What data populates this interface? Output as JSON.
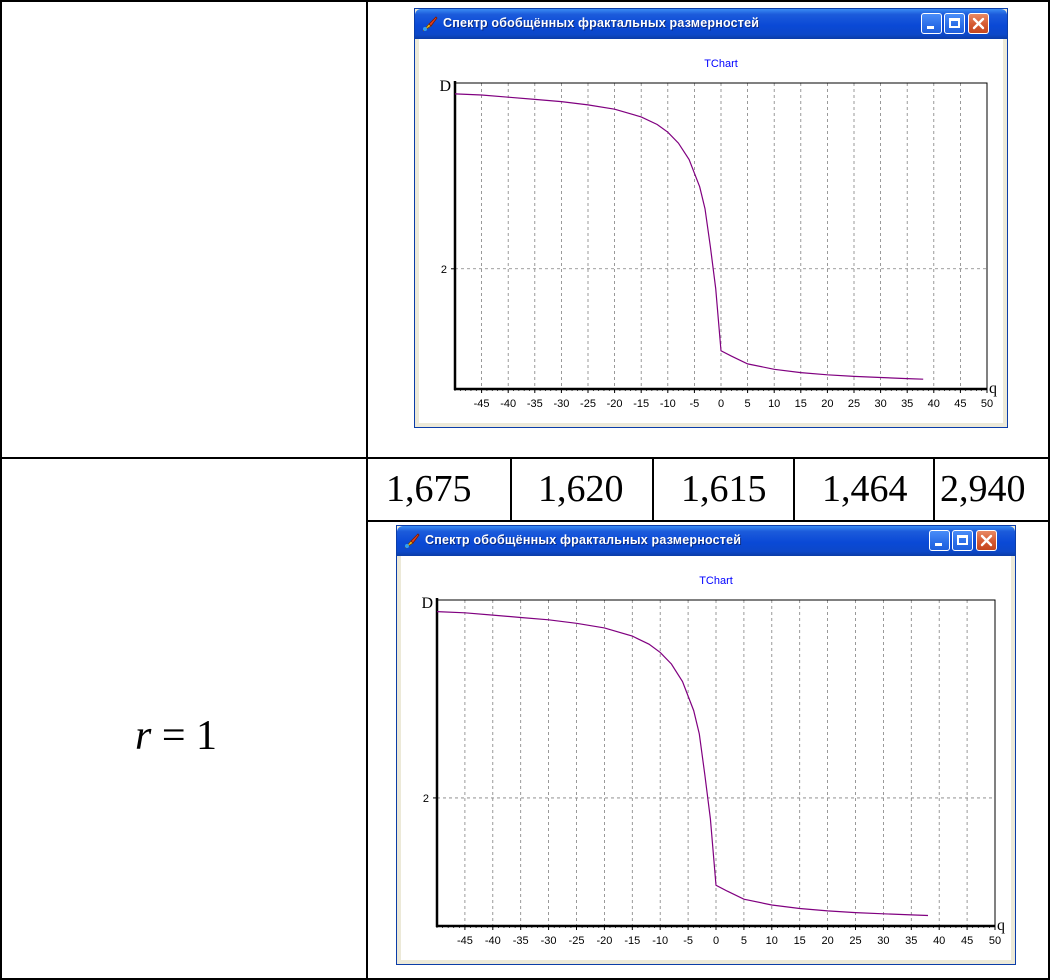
{
  "table": {
    "r_label": {
      "var": "r",
      "rest": " = 1"
    },
    "values": [
      "1,675",
      "1,620",
      "1,615",
      "1,464",
      "2,940"
    ]
  },
  "windows": [
    {
      "title": "Спектр обобщённых фрактальных размерностей"
    },
    {
      "title": "Спектр обобщённых фрактальных размерностей"
    }
  ],
  "chart_data": [
    {
      "type": "line",
      "title": "TChart",
      "xlabel": "q",
      "ylabel": "D",
      "xlim": [
        -50,
        50
      ],
      "ylim": [
        0.9,
        3.7
      ],
      "x_ticks": [
        -45,
        -40,
        -35,
        -30,
        -25,
        -20,
        -15,
        -10,
        -5,
        0,
        5,
        10,
        15,
        20,
        25,
        30,
        35,
        40,
        45,
        50
      ],
      "y_ticks": [
        2
      ],
      "grid": true,
      "color": "#800080",
      "series": [
        {
          "x": [
            -50,
            -45,
            -40,
            -35,
            -30,
            -25,
            -20,
            -15,
            -12,
            -10,
            -8,
            -6,
            -4,
            -3,
            -2,
            -1,
            0,
            2,
            5,
            10,
            15,
            20,
            25,
            30,
            35,
            38
          ],
          "values": [
            3.6,
            3.59,
            3.57,
            3.55,
            3.53,
            3.5,
            3.46,
            3.39,
            3.32,
            3.25,
            3.15,
            3.0,
            2.75,
            2.55,
            2.2,
            1.82,
            1.25,
            1.2,
            1.13,
            1.08,
            1.05,
            1.03,
            1.015,
            1.005,
            0.995,
            0.99
          ]
        }
      ]
    },
    {
      "type": "line",
      "title": "TChart",
      "xlabel": "q",
      "ylabel": "D",
      "xlim": [
        -50,
        50
      ],
      "ylim": [
        0.9,
        3.7
      ],
      "x_ticks": [
        -45,
        -40,
        -35,
        -30,
        -25,
        -20,
        -15,
        -10,
        -5,
        0,
        5,
        10,
        15,
        20,
        25,
        30,
        35,
        40,
        45,
        50
      ],
      "y_ticks": [
        2
      ],
      "grid": true,
      "color": "#800080",
      "series": [
        {
          "x": [
            -50,
            -45,
            -40,
            -35,
            -30,
            -25,
            -20,
            -15,
            -12,
            -10,
            -8,
            -6,
            -4,
            -3,
            -2,
            -1,
            0,
            2,
            5,
            10,
            15,
            20,
            25,
            30,
            35,
            38
          ],
          "values": [
            3.6,
            3.59,
            3.57,
            3.55,
            3.53,
            3.5,
            3.46,
            3.39,
            3.32,
            3.25,
            3.15,
            3.0,
            2.75,
            2.55,
            2.2,
            1.82,
            1.25,
            1.2,
            1.13,
            1.08,
            1.05,
            1.03,
            1.015,
            1.005,
            0.995,
            0.99
          ]
        }
      ]
    }
  ]
}
